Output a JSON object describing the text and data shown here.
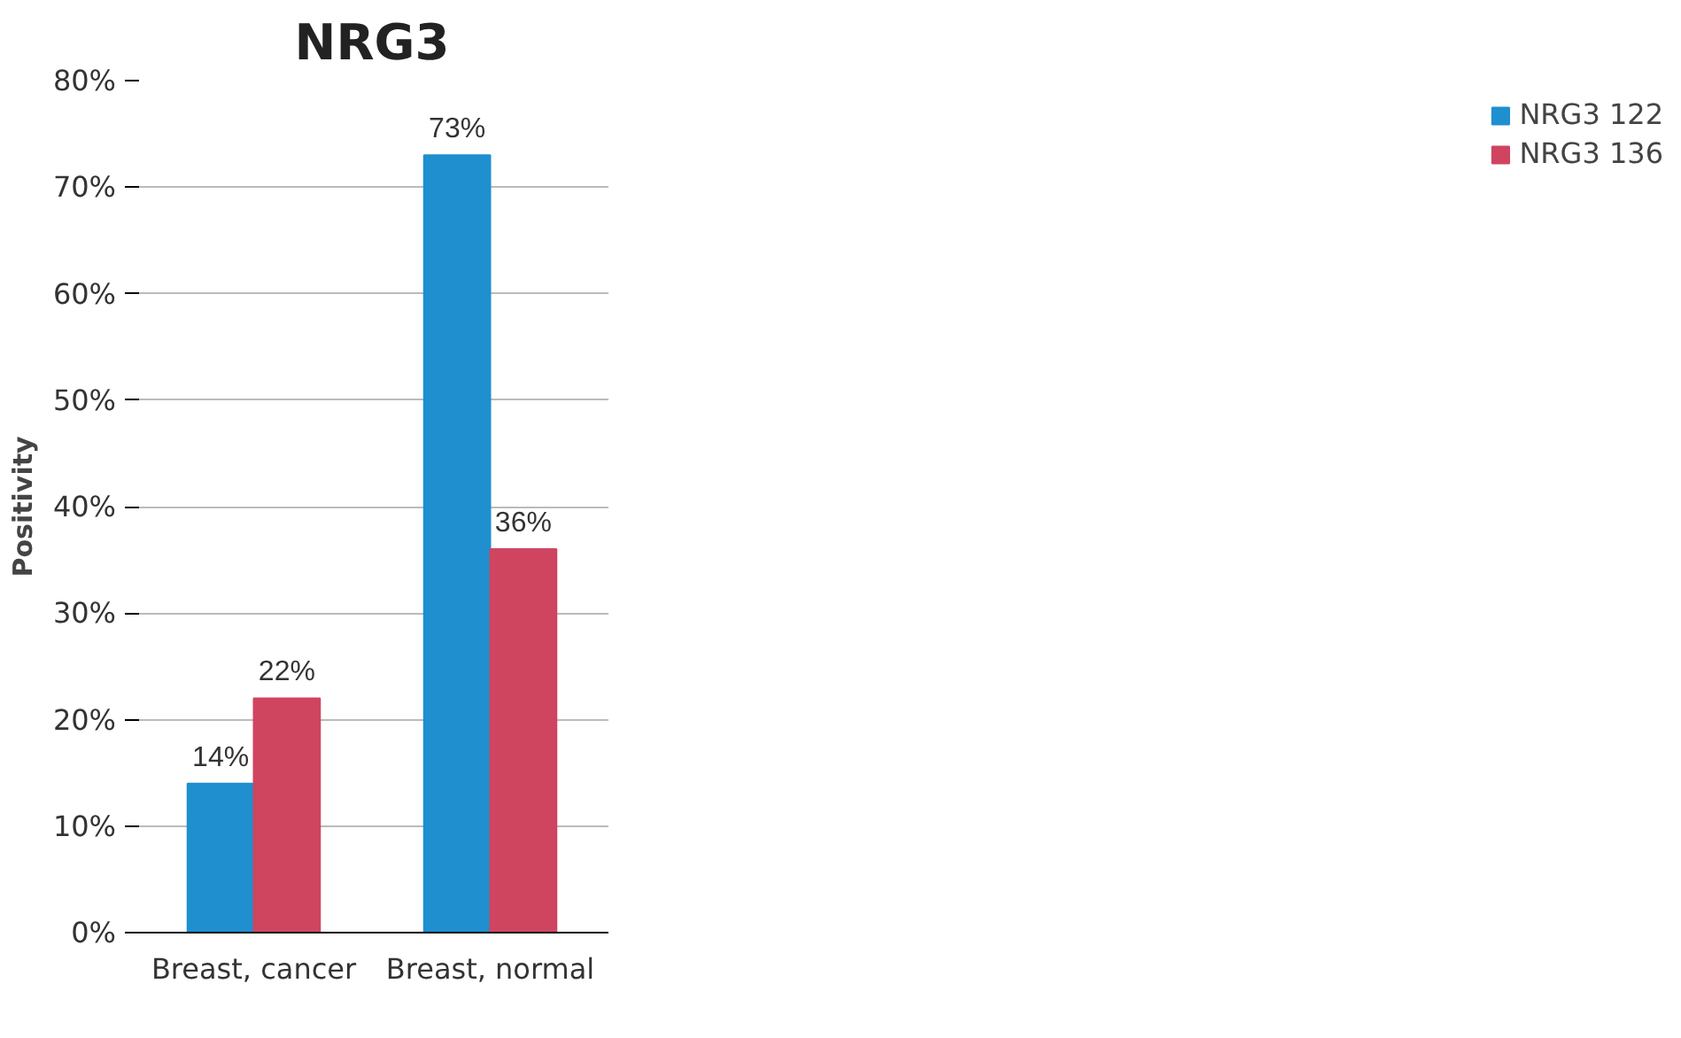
{
  "chart_data": {
    "type": "bar",
    "title": "NRG3",
    "ylabel": "Positivity",
    "categories": [
      "Breast, cancer",
      "Breast, normal"
    ],
    "series": [
      {
        "name": "NRG3 122",
        "color": "#1f8fcf",
        "values": [
          14,
          73
        ],
        "value_labels": [
          "14%",
          "73%"
        ]
      },
      {
        "name": "NRG3 136",
        "color": "#cf4560",
        "values": [
          22,
          36
        ],
        "value_labels": [
          "22%",
          "36%"
        ]
      }
    ],
    "ylim": [
      0,
      80
    ],
    "yticks": [
      {
        "value": 0,
        "label": "0%"
      },
      {
        "value": 10,
        "label": "10%"
      },
      {
        "value": 20,
        "label": "20%"
      },
      {
        "value": 30,
        "label": "30%"
      },
      {
        "value": 40,
        "label": "40%"
      },
      {
        "value": 50,
        "label": "50%"
      },
      {
        "value": 60,
        "label": "60%"
      },
      {
        "value": 70,
        "label": "70%"
      },
      {
        "value": 80,
        "label": "80%"
      }
    ],
    "grid": "y",
    "legend": "right"
  }
}
